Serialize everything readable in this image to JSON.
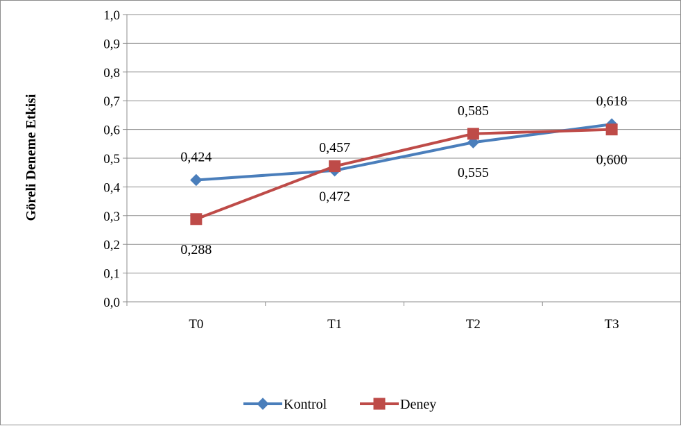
{
  "chart_data": {
    "type": "line",
    "title": "",
    "xlabel": "",
    "ylabel": "Göreli Deneme Etkisi",
    "categories": [
      "T0",
      "T1",
      "T2",
      "T3"
    ],
    "ylim": [
      0,
      1.0
    ],
    "yticks": [
      "0,0",
      "0,1",
      "0,2",
      "0,3",
      "0,4",
      "0,5",
      "0,6",
      "0,7",
      "0,8",
      "0,9",
      "1,0"
    ],
    "grid": true,
    "legend": "bottom",
    "series": [
      {
        "name": "Kontrol",
        "color": "#4a7ebb",
        "marker": "diamond",
        "values": [
          0.424,
          0.457,
          0.555,
          0.618
        ],
        "labels": [
          "0,424",
          "0,457",
          "0,555",
          "0,618"
        ],
        "label_pos": [
          "above",
          "above",
          "below",
          "above"
        ]
      },
      {
        "name": "Deney",
        "color": "#be4b48",
        "marker": "square",
        "values": [
          0.288,
          0.472,
          0.585,
          0.6
        ],
        "labels": [
          "0,288",
          "0,472",
          "0,585",
          "0,600"
        ],
        "label_pos": [
          "below",
          "below",
          "above",
          "below"
        ]
      }
    ]
  }
}
